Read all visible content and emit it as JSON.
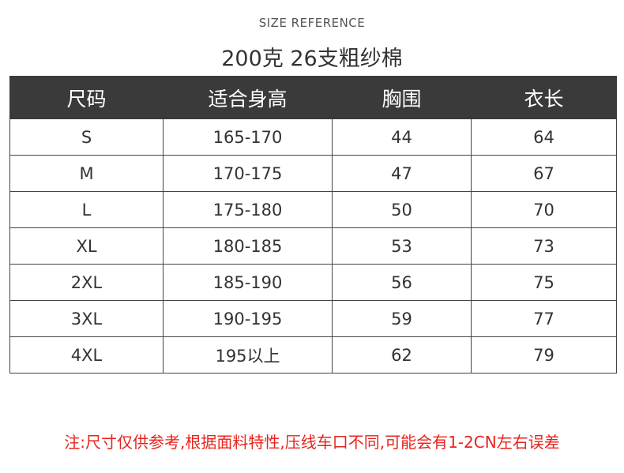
{
  "header": {
    "eyebrow": "SIZE REFERENCE",
    "title": "200克 26支粗纱棉"
  },
  "table": {
    "columns": [
      "尺码",
      "适合身高",
      "胸围",
      "衣长"
    ],
    "rows": [
      [
        "S",
        "165-170",
        "44",
        "64"
      ],
      [
        "M",
        "170-175",
        "47",
        "67"
      ],
      [
        "L",
        "175-180",
        "50",
        "70"
      ],
      [
        "XL",
        "180-185",
        "53",
        "73"
      ],
      [
        "2XL",
        "185-190",
        "56",
        "75"
      ],
      [
        "3XL",
        "190-195",
        "59",
        "77"
      ],
      [
        "4XL",
        "195以上",
        "62",
        "79"
      ]
    ]
  },
  "footer": {
    "note": "注:尺寸仅供参考,根据面料特性,压线车口不同,可能会有1-2CN左右误差"
  },
  "colors": {
    "header_bg": "#3a3a3a",
    "note_text": "#e8231d"
  }
}
